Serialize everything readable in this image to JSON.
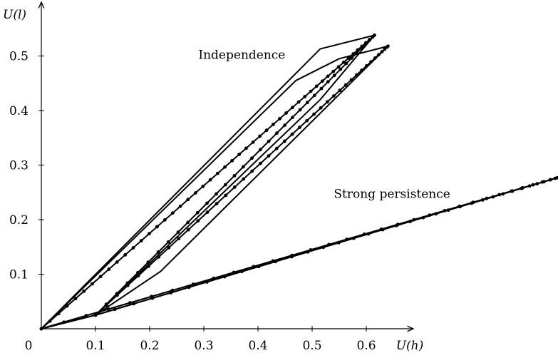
{
  "chart_data": {
    "type": "line",
    "xlabel": "U(h)",
    "ylabel": "U(l)",
    "xlim": [
      0,
      0.96
    ],
    "ylim": [
      0,
      0.565
    ],
    "origin_label": "0",
    "x_ticks": [
      "0.1",
      "0.2",
      "0.3",
      "0.4",
      "0.5",
      "0.6"
    ],
    "y_ticks": [
      "0.1",
      "0.2",
      "0.3",
      "0.4",
      "0.5"
    ],
    "annotations": [
      {
        "text": "Independence",
        "x": 0.29,
        "y": 0.495
      },
      {
        "text": "Strong persistence",
        "x": 0.54,
        "y": 0.24
      }
    ],
    "series": [
      {
        "points": [
          [
            0,
            0
          ],
          [
            0.515,
            0.513
          ],
          [
            0.615,
            0.538
          ]
        ],
        "markers": false
      },
      {
        "points": [
          [
            0.615,
            0.538
          ],
          [
            0.515,
            0.42
          ],
          [
            0.1,
            0.025
          ],
          [
            0,
            0
          ]
        ],
        "markers": false
      },
      {
        "points": [
          [
            0,
            0
          ],
          [
            0.47,
            0.455
          ],
          [
            0.55,
            0.495
          ],
          [
            0.64,
            0.518
          ]
        ],
        "markers": false
      },
      {
        "points": [
          [
            0.64,
            0.518
          ],
          [
            0.22,
            0.105
          ],
          [
            0.1,
            0.025
          ]
        ],
        "markers": false
      },
      {
        "points": [
          [
            0,
            0
          ],
          [
            0.96,
            0.279
          ]
        ],
        "markers": false
      },
      {
        "points": [
          [
            0.96,
            0.279
          ],
          [
            0.1,
            0.025
          ],
          [
            0,
            0
          ]
        ],
        "markers": false
      },
      {
        "points": [
          [
            0,
            0
          ],
          [
            0.615,
            0.538
          ]
        ],
        "markers": true,
        "marker_count": 50,
        "marker_density": 1.3
      },
      {
        "points": [
          [
            0.1,
            0.025
          ],
          [
            0.615,
            0.538
          ]
        ],
        "markers": true,
        "marker_count": 36,
        "marker_density": 1.4
      },
      {
        "points": [
          [
            0.1,
            0.025
          ],
          [
            0.64,
            0.518
          ]
        ],
        "markers": true,
        "marker_count": 40,
        "marker_density": 1.5
      },
      {
        "points": [
          [
            0,
            0
          ],
          [
            0.96,
            0.279
          ]
        ],
        "markers": true,
        "marker_count": 32,
        "marker_density": 1.4
      },
      {
        "points": [
          [
            0.1,
            0.025
          ],
          [
            0.96,
            0.279
          ]
        ],
        "markers": true,
        "marker_count": 36,
        "marker_density": 1.5
      }
    ]
  }
}
